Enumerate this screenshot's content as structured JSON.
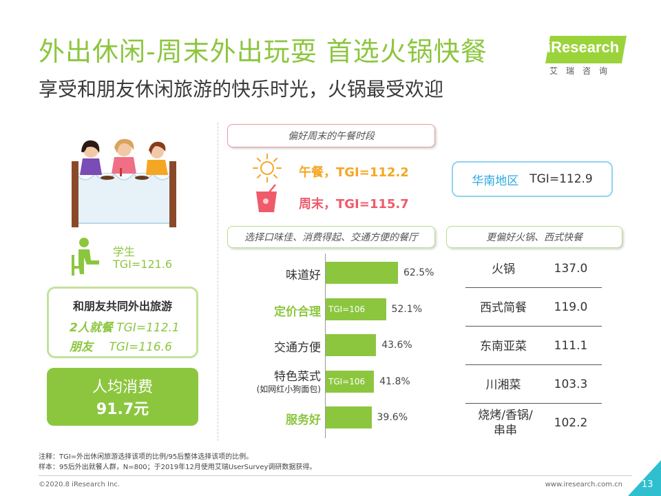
{
  "header": {
    "title": "外出休闲-周末外出玩耍 首选火锅快餐",
    "subtitle": "享受和朋友休闲旅游的快乐时光，火锅最受欢迎"
  },
  "logo": {
    "name": "iResearch",
    "sub": "艾瑞咨询"
  },
  "left_panel": {
    "student_label": "学生",
    "student_tgi": "TGI=121.6",
    "travel_title": "和朋友共同外出旅游",
    "dine_two_label": "2人就餐",
    "dine_two_tgi": "TGI=112.1",
    "friends_label": "朋友",
    "friends_tgi": "TGI=116.6",
    "spend_label": "人均消费",
    "spend_value": "91.7元"
  },
  "weekend": {
    "pill": "偏好周末的午餐时段",
    "lunch": "午餐，TGI=112.2",
    "weekend": "周末，TGI=115.7"
  },
  "region": {
    "name": "华南地区",
    "tgi": "TGI=112.9"
  },
  "bars_pill": "选择口味佳、消费得起、交通方便的餐厅",
  "table_pill": "更偏好火锅、西式快餐",
  "colors": {
    "accent": "#8cc63f",
    "orange": "#f5a623",
    "red": "#ef5b6a",
    "blue": "#2aa8e0"
  },
  "chart_data": [
    {
      "type": "bar",
      "orientation": "horizontal",
      "categories": [
        "味道好",
        "定价合理",
        "交通方便",
        "特色菜式",
        "服务好"
      ],
      "category_notes": [
        "",
        "",
        "",
        "(如网红小狗面包)",
        ""
      ],
      "highlighted": [
        false,
        true,
        false,
        false,
        true
      ],
      "values": [
        62.5,
        52.1,
        43.6,
        41.8,
        39.6
      ],
      "value_labels": [
        "62.5%",
        "52.1%",
        "43.6%",
        "41.8%",
        "39.6%"
      ],
      "inner_labels": [
        "",
        "TGI=106",
        "",
        "TGI=106",
        ""
      ],
      "xlim": [
        0,
        100
      ]
    },
    {
      "type": "table",
      "rows": [
        {
          "name": "火锅",
          "value": "137.0"
        },
        {
          "name": "西式简餐",
          "value": "119.0"
        },
        {
          "name": "东南亚菜",
          "value": "111.1"
        },
        {
          "name": "川湘菜",
          "value": "103.3"
        },
        {
          "name": "烧烤/香锅/串串",
          "value": "102.2"
        }
      ]
    }
  ],
  "notes": {
    "line1": "注释：TGI=外出休闲旅游选择该项的比例/95后整体选择该项的比例。",
    "line2": "样本：95后外出就餐人群，N=800；于2019年12月使用艾瑞UserSurvey调研数据获得。"
  },
  "footer": {
    "copyright": "©2020.8 iResearch Inc.",
    "site": "www.iresearch.com.cn",
    "page": "13"
  }
}
